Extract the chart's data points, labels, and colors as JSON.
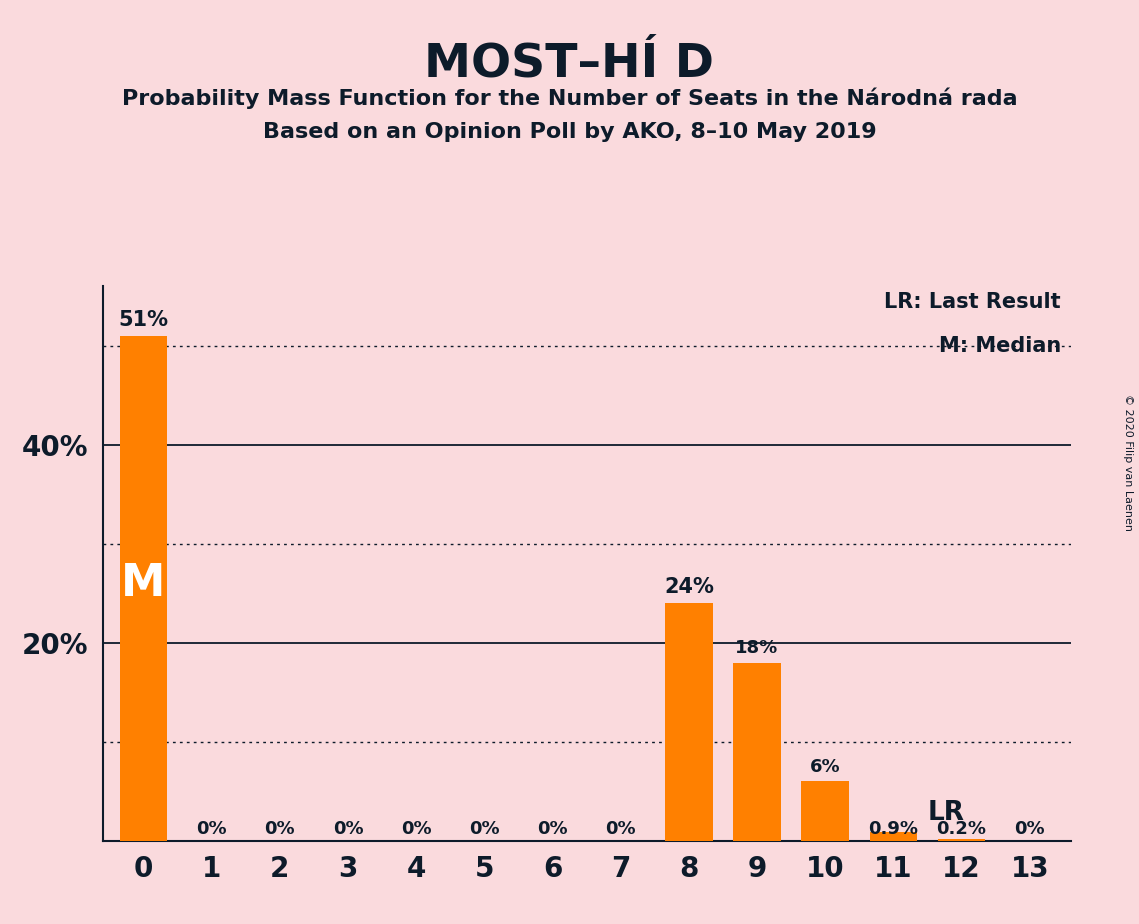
{
  "title_text": "MOST–HÍ D",
  "subtitle1": "Probability Mass Function for the Number of Seats in the Národná rada",
  "subtitle2": "Based on an Opinion Poll by AKO, 8–10 May 2019",
  "copyright": "© 2020 Filip van Laenen",
  "categories": [
    0,
    1,
    2,
    3,
    4,
    5,
    6,
    7,
    8,
    9,
    10,
    11,
    12,
    13
  ],
  "values": [
    0.51,
    0.0,
    0.0,
    0.0,
    0.0,
    0.0,
    0.0,
    0.0,
    0.24,
    0.18,
    0.06,
    0.009,
    0.002,
    0.0
  ],
  "bar_color": "#FF8000",
  "background_color": "#FADADD",
  "text_color": "#0D1B2A",
  "bar_labels": [
    "51%",
    "0%",
    "0%",
    "0%",
    "0%",
    "0%",
    "0%",
    "0%",
    "24%",
    "18%",
    "6%",
    "0.9%",
    "0.2%",
    "0%"
  ],
  "median_bar": 0,
  "lr_bar": 11,
  "legend_lr": "LR: Last Result",
  "legend_m": "M: Median",
  "ylim": [
    0,
    0.56
  ],
  "solid_gridlines": [
    0.2,
    0.4
  ],
  "dotted_gridlines": [
    0.1,
    0.3,
    0.5
  ]
}
